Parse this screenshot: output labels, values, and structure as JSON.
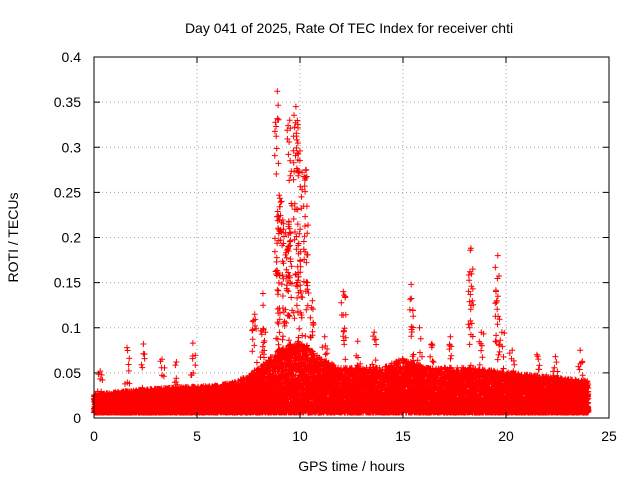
{
  "chart_data": {
    "type": "scatter",
    "title": "Day 041 of 2025, Rate Of TEC Index for receiver chti",
    "xlabel": "GPS time / hours",
    "ylabel": "ROTI / TECUs",
    "xlim": [
      0,
      25
    ],
    "ylim": [
      0,
      0.4
    ],
    "xticks": [
      0,
      5,
      10,
      15,
      20,
      25
    ],
    "yticks": [
      0,
      0.05,
      0.1,
      0.15,
      0.2,
      0.25,
      0.3,
      0.35,
      0.4
    ],
    "xtick_labels": [
      "0",
      "5",
      "10",
      "15",
      "20",
      "25"
    ],
    "ytick_labels": [
      "0",
      "0.05",
      "0.1",
      "0.15",
      "0.2",
      "0.25",
      "0.3",
      "0.35",
      "0.4"
    ],
    "grid": true,
    "marker": "+",
    "color": "#ff0000",
    "series": [
      {
        "name": "ROTI",
        "x_range": [
          0,
          24
        ],
        "sample_interval_hours": 0.005,
        "baseline_envelope": [
          [
            0,
            0.02
          ],
          [
            2,
            0.025
          ],
          [
            4,
            0.028
          ],
          [
            6,
            0.03
          ],
          [
            7,
            0.035
          ],
          [
            8,
            0.05
          ],
          [
            9,
            0.07
          ],
          [
            10,
            0.08
          ],
          [
            11,
            0.06
          ],
          [
            12,
            0.05
          ],
          [
            14,
            0.05
          ],
          [
            15,
            0.06
          ],
          [
            16,
            0.05
          ],
          [
            18,
            0.05
          ],
          [
            20,
            0.045
          ],
          [
            22,
            0.04
          ],
          [
            24,
            0.035
          ]
        ],
        "spikes": [
          {
            "x": 0.3,
            "y": 0.052
          },
          {
            "x": 1.6,
            "y": 0.078
          },
          {
            "x": 2.4,
            "y": 0.082
          },
          {
            "x": 3.3,
            "y": 0.065
          },
          {
            "x": 4.0,
            "y": 0.062
          },
          {
            "x": 4.8,
            "y": 0.083
          },
          {
            "x": 7.8,
            "y": 0.115
          },
          {
            "x": 8.2,
            "y": 0.138
          },
          {
            "x": 8.9,
            "y": 0.362
          },
          {
            "x": 9.1,
            "y": 0.24
          },
          {
            "x": 9.3,
            "y": 0.205
          },
          {
            "x": 9.5,
            "y": 0.33
          },
          {
            "x": 9.8,
            "y": 0.345
          },
          {
            "x": 10.0,
            "y": 0.296
          },
          {
            "x": 10.3,
            "y": 0.275
          },
          {
            "x": 10.6,
            "y": 0.13
          },
          {
            "x": 11.2,
            "y": 0.09
          },
          {
            "x": 12.1,
            "y": 0.14
          },
          {
            "x": 12.8,
            "y": 0.085
          },
          {
            "x": 13.6,
            "y": 0.095
          },
          {
            "x": 15.4,
            "y": 0.148
          },
          {
            "x": 15.8,
            "y": 0.1
          },
          {
            "x": 16.4,
            "y": 0.082
          },
          {
            "x": 17.3,
            "y": 0.09
          },
          {
            "x": 18.3,
            "y": 0.188
          },
          {
            "x": 18.8,
            "y": 0.095
          },
          {
            "x": 19.6,
            "y": 0.18
          },
          {
            "x": 19.8,
            "y": 0.095
          },
          {
            "x": 20.3,
            "y": 0.075
          },
          {
            "x": 21.5,
            "y": 0.07
          },
          {
            "x": 22.4,
            "y": 0.068
          },
          {
            "x": 23.6,
            "y": 0.075
          }
        ]
      }
    ]
  }
}
